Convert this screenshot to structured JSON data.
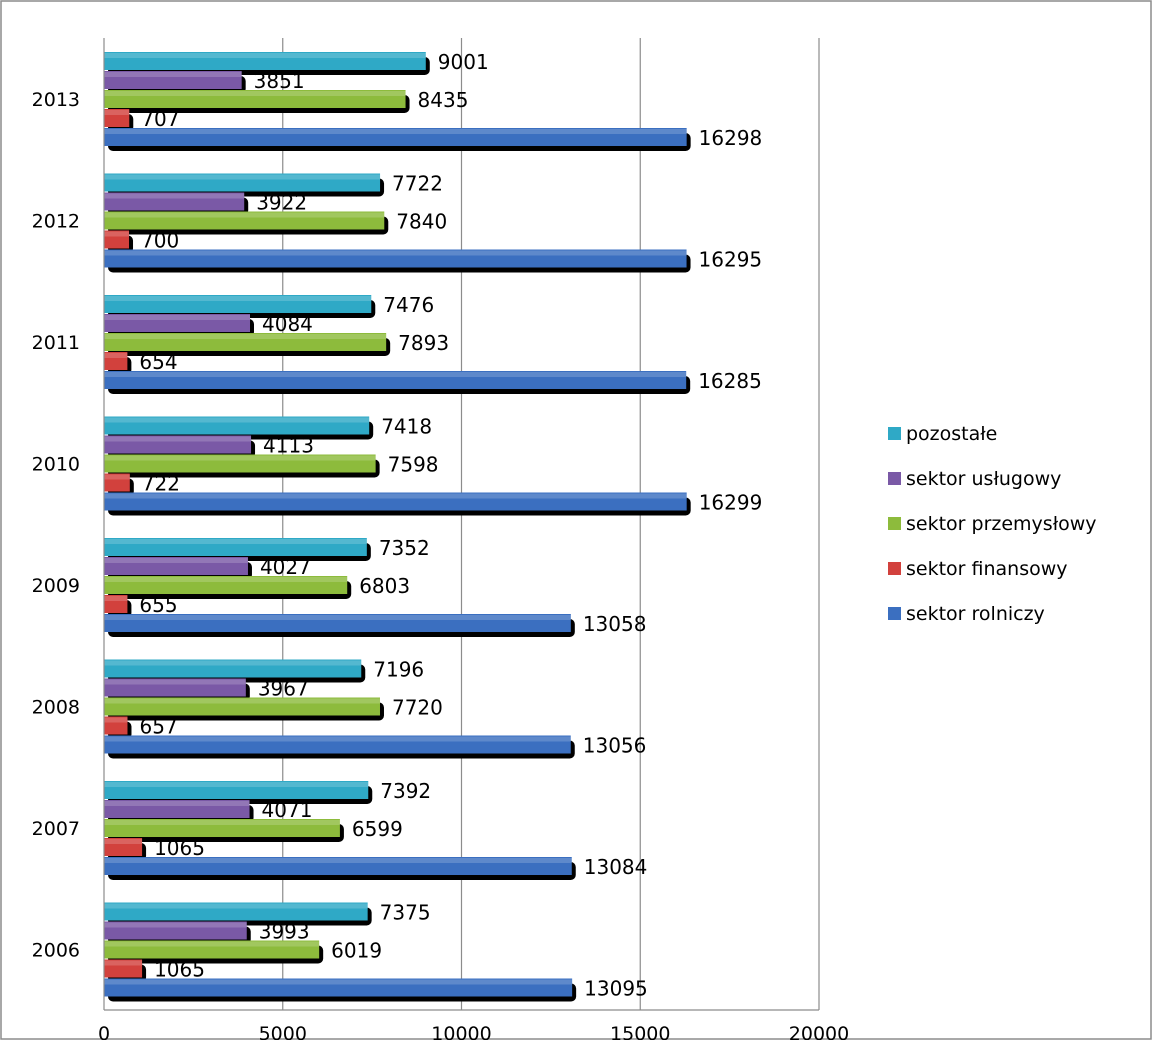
{
  "chart_data": {
    "type": "bar",
    "orientation": "horizontal",
    "categories": [
      "2006",
      "2007",
      "2008",
      "2009",
      "2010",
      "2011",
      "2012",
      "2013"
    ],
    "series": [
      {
        "name": "sektor rolniczy",
        "color": "#3b6fc0",
        "values": [
          13095,
          13084,
          13056,
          13058,
          16299,
          16285,
          16295,
          16298
        ]
      },
      {
        "name": "sektor finansowy",
        "color": "#d2413d",
        "values": [
          1065,
          1065,
          657,
          655,
          722,
          654,
          700,
          707
        ]
      },
      {
        "name": "sektor przemysłowy",
        "color": "#8dbb3c",
        "values": [
          6019,
          6599,
          7720,
          6803,
          7598,
          7893,
          7840,
          8435
        ]
      },
      {
        "name": "sektor usługowy",
        "color": "#7a59a6",
        "values": [
          3993,
          4071,
          3967,
          4027,
          4113,
          4084,
          3922,
          3851
        ]
      },
      {
        "name": "pozostałe",
        "color": "#2fa9c6",
        "values": [
          7375,
          7392,
          7196,
          7352,
          7418,
          7476,
          7722,
          9001
        ]
      }
    ],
    "xlim": [
      0,
      20000
    ],
    "xticks": [
      "0",
      "5000",
      "10000",
      "15000",
      "20000"
    ],
    "grid": true,
    "data_labels": true,
    "legend_position": "right"
  }
}
